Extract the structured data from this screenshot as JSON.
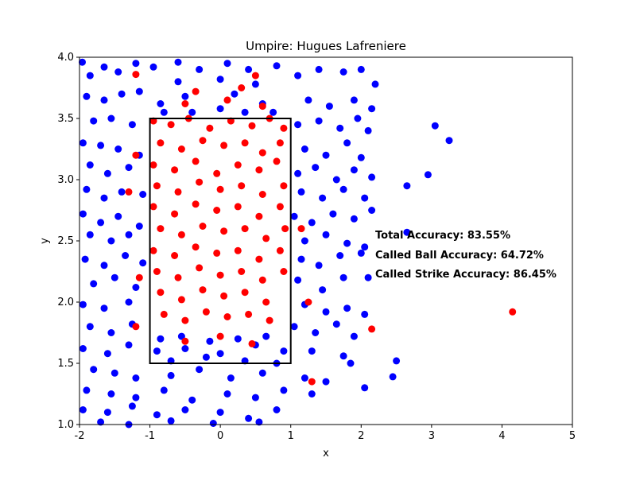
{
  "chart_data": {
    "type": "scatter",
    "title": "Umpire: Hugues Lafreniere",
    "xlabel": "x",
    "ylabel": "y",
    "xlim": [
      -2,
      5
    ],
    "ylim": [
      1.0,
      4.0
    ],
    "xticks": [
      "-2",
      "-1",
      "0",
      "1",
      "2",
      "3",
      "4",
      "5"
    ],
    "yticks": [
      "1.0",
      "1.5",
      "2.0",
      "2.5",
      "3.0",
      "3.5",
      "4.0"
    ],
    "grid": false,
    "strike_zone": {
      "x": [
        -1,
        1
      ],
      "y": [
        1.5,
        3.5
      ]
    },
    "colors": {
      "blue": "#0000ff",
      "red": "#ff0000"
    },
    "annotations": [
      "Total Accuracy: 83.55%",
      "Called Ball Accuracy: 64.72%",
      "Called Strike Accuracy: 86.45%"
    ],
    "series": [
      {
        "color": "#0000ff",
        "points": [
          [
            -1.96,
            3.96
          ],
          [
            -1.85,
            3.85
          ],
          [
            -1.65,
            3.92
          ],
          [
            -1.45,
            3.88
          ],
          [
            -1.2,
            3.95
          ],
          [
            -0.95,
            3.92
          ],
          [
            -0.6,
            3.96
          ],
          [
            -0.3,
            3.9
          ],
          [
            0.1,
            3.95
          ],
          [
            0.4,
            3.9
          ],
          [
            0.8,
            3.93
          ],
          [
            1.1,
            3.85
          ],
          [
            1.4,
            3.9
          ],
          [
            1.75,
            3.88
          ],
          [
            2.0,
            3.9
          ],
          [
            2.2,
            3.78
          ],
          [
            -1.9,
            3.68
          ],
          [
            -1.65,
            3.65
          ],
          [
            -1.4,
            3.7
          ],
          [
            -1.15,
            3.72
          ],
          [
            -0.85,
            3.62
          ],
          [
            -0.5,
            3.68
          ],
          [
            0.2,
            3.7
          ],
          [
            0.6,
            3.62
          ],
          [
            1.25,
            3.65
          ],
          [
            1.55,
            3.6
          ],
          [
            1.9,
            3.65
          ],
          [
            2.15,
            3.58
          ],
          [
            -1.8,
            3.48
          ],
          [
            -1.55,
            3.5
          ],
          [
            -1.25,
            3.45
          ],
          [
            1.1,
            3.45
          ],
          [
            1.4,
            3.48
          ],
          [
            1.7,
            3.42
          ],
          [
            1.95,
            3.5
          ],
          [
            2.1,
            3.4
          ],
          [
            3.05,
            3.44
          ],
          [
            3.25,
            3.32
          ],
          [
            -1.95,
            3.3
          ],
          [
            -1.7,
            3.28
          ],
          [
            -1.45,
            3.25
          ],
          [
            -1.15,
            3.2
          ],
          [
            1.2,
            3.25
          ],
          [
            1.5,
            3.2
          ],
          [
            1.8,
            3.3
          ],
          [
            2.0,
            3.18
          ],
          [
            -1.85,
            3.12
          ],
          [
            -1.6,
            3.05
          ],
          [
            -1.3,
            3.1
          ],
          [
            1.1,
            3.05
          ],
          [
            1.35,
            3.1
          ],
          [
            1.65,
            3.0
          ],
          [
            1.9,
            3.08
          ],
          [
            2.15,
            3.02
          ],
          [
            2.95,
            3.04
          ],
          [
            2.65,
            2.95
          ],
          [
            -1.9,
            2.92
          ],
          [
            -1.65,
            2.85
          ],
          [
            -1.4,
            2.9
          ],
          [
            -1.1,
            2.88
          ],
          [
            1.15,
            2.9
          ],
          [
            1.45,
            2.85
          ],
          [
            1.75,
            2.92
          ],
          [
            2.05,
            2.85
          ],
          [
            -1.95,
            2.72
          ],
          [
            -1.7,
            2.65
          ],
          [
            -1.45,
            2.7
          ],
          [
            -1.15,
            2.62
          ],
          [
            1.05,
            2.7
          ],
          [
            1.3,
            2.65
          ],
          [
            1.6,
            2.72
          ],
          [
            1.9,
            2.68
          ],
          [
            2.15,
            2.75
          ],
          [
            -1.85,
            2.55
          ],
          [
            -1.55,
            2.5
          ],
          [
            -1.3,
            2.55
          ],
          [
            1.2,
            2.5
          ],
          [
            1.5,
            2.55
          ],
          [
            1.8,
            2.48
          ],
          [
            2.05,
            2.45
          ],
          [
            2.65,
            2.57
          ],
          [
            -1.92,
            2.35
          ],
          [
            -1.65,
            2.3
          ],
          [
            -1.35,
            2.38
          ],
          [
            -1.1,
            2.32
          ],
          [
            1.15,
            2.35
          ],
          [
            1.4,
            2.3
          ],
          [
            1.7,
            2.38
          ],
          [
            2.0,
            2.4
          ],
          [
            -1.8,
            2.15
          ],
          [
            -1.5,
            2.2
          ],
          [
            -1.2,
            2.12
          ],
          [
            1.1,
            2.18
          ],
          [
            1.45,
            2.1
          ],
          [
            1.75,
            2.2
          ],
          [
            2.1,
            2.2
          ],
          [
            -1.95,
            1.98
          ],
          [
            -1.65,
            1.95
          ],
          [
            -1.3,
            2.0
          ],
          [
            1.2,
            1.98
          ],
          [
            1.5,
            1.92
          ],
          [
            1.8,
            1.95
          ],
          [
            2.05,
            1.9
          ],
          [
            -1.85,
            1.8
          ],
          [
            -1.55,
            1.75
          ],
          [
            -1.25,
            1.82
          ],
          [
            1.05,
            1.8
          ],
          [
            1.35,
            1.75
          ],
          [
            1.65,
            1.82
          ],
          [
            1.9,
            1.72
          ],
          [
            -1.95,
            1.62
          ],
          [
            -1.6,
            1.58
          ],
          [
            -1.3,
            1.65
          ],
          [
            -0.9,
            1.6
          ],
          [
            -0.5,
            1.62
          ],
          [
            0.0,
            1.58
          ],
          [
            0.5,
            1.65
          ],
          [
            0.9,
            1.6
          ],
          [
            1.3,
            1.6
          ],
          [
            1.75,
            1.56
          ],
          [
            1.85,
            1.5
          ],
          [
            -1.8,
            1.45
          ],
          [
            -1.5,
            1.42
          ],
          [
            -1.2,
            1.38
          ],
          [
            -0.7,
            1.4
          ],
          [
            -0.3,
            1.45
          ],
          [
            0.15,
            1.38
          ],
          [
            0.6,
            1.42
          ],
          [
            1.2,
            1.38
          ],
          [
            1.5,
            1.35
          ],
          [
            2.05,
            1.3
          ],
          [
            2.5,
            1.52
          ],
          [
            2.45,
            1.39
          ],
          [
            -1.9,
            1.28
          ],
          [
            -1.55,
            1.25
          ],
          [
            -1.2,
            1.22
          ],
          [
            -0.8,
            1.28
          ],
          [
            -0.4,
            1.2
          ],
          [
            0.1,
            1.25
          ],
          [
            0.5,
            1.22
          ],
          [
            0.9,
            1.28
          ],
          [
            1.3,
            1.25
          ],
          [
            -1.95,
            1.12
          ],
          [
            -1.6,
            1.1
          ],
          [
            -1.25,
            1.15
          ],
          [
            -0.9,
            1.08
          ],
          [
            -0.5,
            1.12
          ],
          [
            0.0,
            1.1
          ],
          [
            0.4,
            1.05
          ],
          [
            0.8,
            1.12
          ],
          [
            -1.7,
            1.02
          ],
          [
            -1.3,
            1.0
          ],
          [
            -0.7,
            1.03
          ],
          [
            -0.1,
            1.01
          ],
          [
            0.55,
            1.02
          ],
          [
            -0.8,
            3.55
          ],
          [
            -0.4,
            3.55
          ],
          [
            0.0,
            3.58
          ],
          [
            0.35,
            3.55
          ],
          [
            0.75,
            3.55
          ],
          [
            -0.6,
            3.8
          ],
          [
            0.0,
            3.82
          ],
          [
            0.5,
            3.78
          ],
          [
            -0.85,
            1.7
          ],
          [
            -0.55,
            1.72
          ],
          [
            -0.15,
            1.68
          ],
          [
            0.25,
            1.7
          ],
          [
            0.65,
            1.72
          ],
          [
            -0.7,
            1.52
          ],
          [
            -0.2,
            1.55
          ],
          [
            0.35,
            1.52
          ],
          [
            0.8,
            1.5
          ]
        ]
      },
      {
        "color": "#ff0000",
        "points": [
          [
            -0.95,
            3.48
          ],
          [
            -0.7,
            3.45
          ],
          [
            -0.45,
            3.5
          ],
          [
            -0.15,
            3.42
          ],
          [
            0.15,
            3.48
          ],
          [
            0.45,
            3.44
          ],
          [
            0.7,
            3.5
          ],
          [
            0.9,
            3.42
          ],
          [
            -0.85,
            3.3
          ],
          [
            -0.55,
            3.25
          ],
          [
            -0.25,
            3.32
          ],
          [
            0.05,
            3.28
          ],
          [
            0.35,
            3.3
          ],
          [
            0.6,
            3.22
          ],
          [
            0.85,
            3.3
          ],
          [
            -0.95,
            3.12
          ],
          [
            -0.65,
            3.08
          ],
          [
            -0.35,
            3.15
          ],
          [
            -0.05,
            3.05
          ],
          [
            0.25,
            3.12
          ],
          [
            0.55,
            3.08
          ],
          [
            0.8,
            3.15
          ],
          [
            -0.9,
            2.95
          ],
          [
            -0.6,
            2.9
          ],
          [
            -0.3,
            2.98
          ],
          [
            0.0,
            2.92
          ],
          [
            0.3,
            2.95
          ],
          [
            0.6,
            2.88
          ],
          [
            0.9,
            2.95
          ],
          [
            -0.95,
            2.78
          ],
          [
            -0.65,
            2.72
          ],
          [
            -0.35,
            2.8
          ],
          [
            -0.05,
            2.75
          ],
          [
            0.25,
            2.78
          ],
          [
            0.55,
            2.7
          ],
          [
            0.85,
            2.78
          ],
          [
            -0.85,
            2.6
          ],
          [
            -0.55,
            2.55
          ],
          [
            -0.25,
            2.62
          ],
          [
            0.05,
            2.58
          ],
          [
            0.35,
            2.6
          ],
          [
            0.65,
            2.52
          ],
          [
            0.92,
            2.6
          ],
          [
            -0.95,
            2.42
          ],
          [
            -0.65,
            2.38
          ],
          [
            -0.35,
            2.45
          ],
          [
            -0.05,
            2.4
          ],
          [
            0.25,
            2.42
          ],
          [
            0.55,
            2.35
          ],
          [
            0.85,
            2.42
          ],
          [
            -0.9,
            2.25
          ],
          [
            -0.6,
            2.2
          ],
          [
            -0.3,
            2.28
          ],
          [
            0.0,
            2.22
          ],
          [
            0.3,
            2.25
          ],
          [
            0.6,
            2.18
          ],
          [
            0.9,
            2.25
          ],
          [
            -0.85,
            2.08
          ],
          [
            -0.55,
            2.02
          ],
          [
            -0.25,
            2.1
          ],
          [
            0.05,
            2.05
          ],
          [
            0.35,
            2.08
          ],
          [
            0.65,
            2.0
          ],
          [
            -0.8,
            1.9
          ],
          [
            -0.5,
            1.85
          ],
          [
            -0.2,
            1.92
          ],
          [
            0.1,
            1.88
          ],
          [
            0.4,
            1.9
          ],
          [
            0.7,
            1.85
          ],
          [
            -0.5,
            1.68
          ],
          [
            0.0,
            1.72
          ],
          [
            0.45,
            1.66
          ],
          [
            -0.5,
            3.62
          ],
          [
            0.1,
            3.65
          ],
          [
            0.6,
            3.6
          ],
          [
            -0.35,
            3.72
          ],
          [
            0.3,
            3.75
          ],
          [
            -1.2,
            3.2
          ],
          [
            -1.3,
            2.9
          ],
          [
            -1.15,
            2.2
          ],
          [
            -1.2,
            1.8
          ],
          [
            1.15,
            2.6
          ],
          [
            1.25,
            2.0
          ],
          [
            1.3,
            1.35
          ],
          [
            2.15,
            1.78
          ],
          [
            4.15,
            1.92
          ],
          [
            -1.2,
            3.86
          ],
          [
            0.5,
            3.85
          ]
        ]
      }
    ]
  }
}
